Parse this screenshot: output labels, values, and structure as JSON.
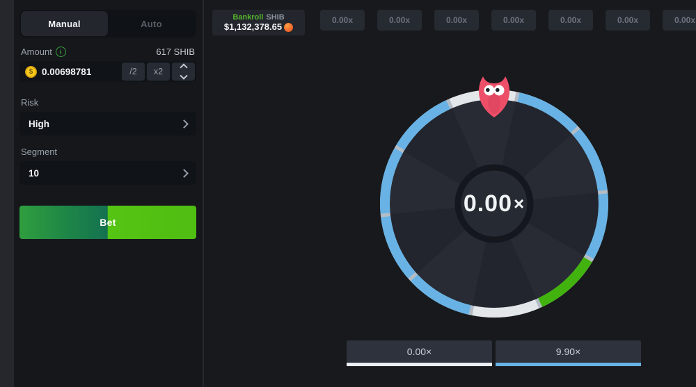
{
  "sidebar": {
    "tabs": [
      {
        "label": "Manual",
        "active": true
      },
      {
        "label": "Auto",
        "active": false
      }
    ],
    "amount": {
      "label": "Amount",
      "balance": "617 SHIB",
      "currency_symbol": "$",
      "value": "0.00698781",
      "half_button": "/2",
      "double_button": "x2"
    },
    "risk": {
      "label": "Risk",
      "value": "High"
    },
    "segment": {
      "label": "Segment",
      "value": "10"
    },
    "bet_button": "Bet"
  },
  "topbar": {
    "bankroll": {
      "title": "Bankroll",
      "currency": "SHIB",
      "amount": "$1,132,378.65",
      "mascot_icon": "fox-emoji"
    },
    "history": [
      "0.00x",
      "0.00x",
      "0.00x",
      "0.00x",
      "0.00x",
      "0.00x",
      "0.00x"
    ]
  },
  "wheel": {
    "center_value": "0.00",
    "center_suffix": "×",
    "rotation_deg": -6,
    "segment_count": 10,
    "segment_colors": [
      "white",
      "blue",
      "blue",
      "blue",
      "green",
      "white",
      "blue",
      "blue",
      "blue",
      "blue"
    ],
    "palette": {
      "white": "#e3e7ea",
      "blue": "#68b2e5",
      "green": "#42b30e",
      "track": "#b4bdc6",
      "wedge_light": "#282b33",
      "wedge_dark": "#22252d",
      "hub_fill": "#262a32",
      "hub_ring": "#14171d"
    }
  },
  "results": [
    {
      "label": "0.00×",
      "color": "#eaeef3"
    },
    {
      "label": "9.90×",
      "color": "#68b2e5"
    }
  ]
}
